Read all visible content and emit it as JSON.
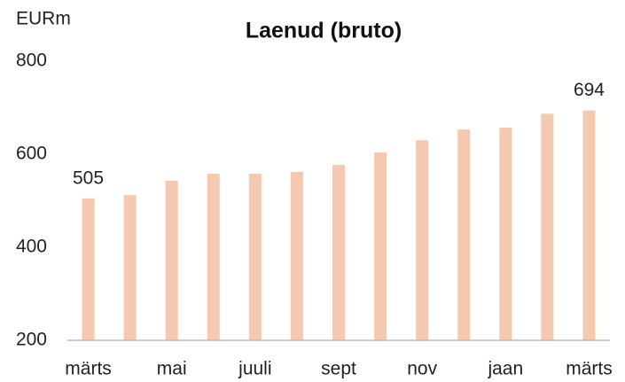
{
  "chart_data": {
    "type": "bar",
    "title": "Laenud (bruto)",
    "y_axis_label": "EURm",
    "categories": [
      "märts",
      null,
      "mai",
      null,
      "juuli",
      null,
      "sept",
      null,
      "nov",
      null,
      "jaan",
      null,
      "märts"
    ],
    "values": [
      505,
      512,
      543,
      558,
      558,
      562,
      577,
      604,
      630,
      653,
      657,
      687,
      694
    ],
    "value_labels": [
      "505",
      null,
      null,
      null,
      null,
      null,
      null,
      null,
      null,
      null,
      null,
      null,
      "694"
    ],
    "color": "#f5c9b0",
    "ylim": [
      200,
      800
    ],
    "yticks": [
      200,
      400,
      600,
      800
    ],
    "grid": false
  }
}
